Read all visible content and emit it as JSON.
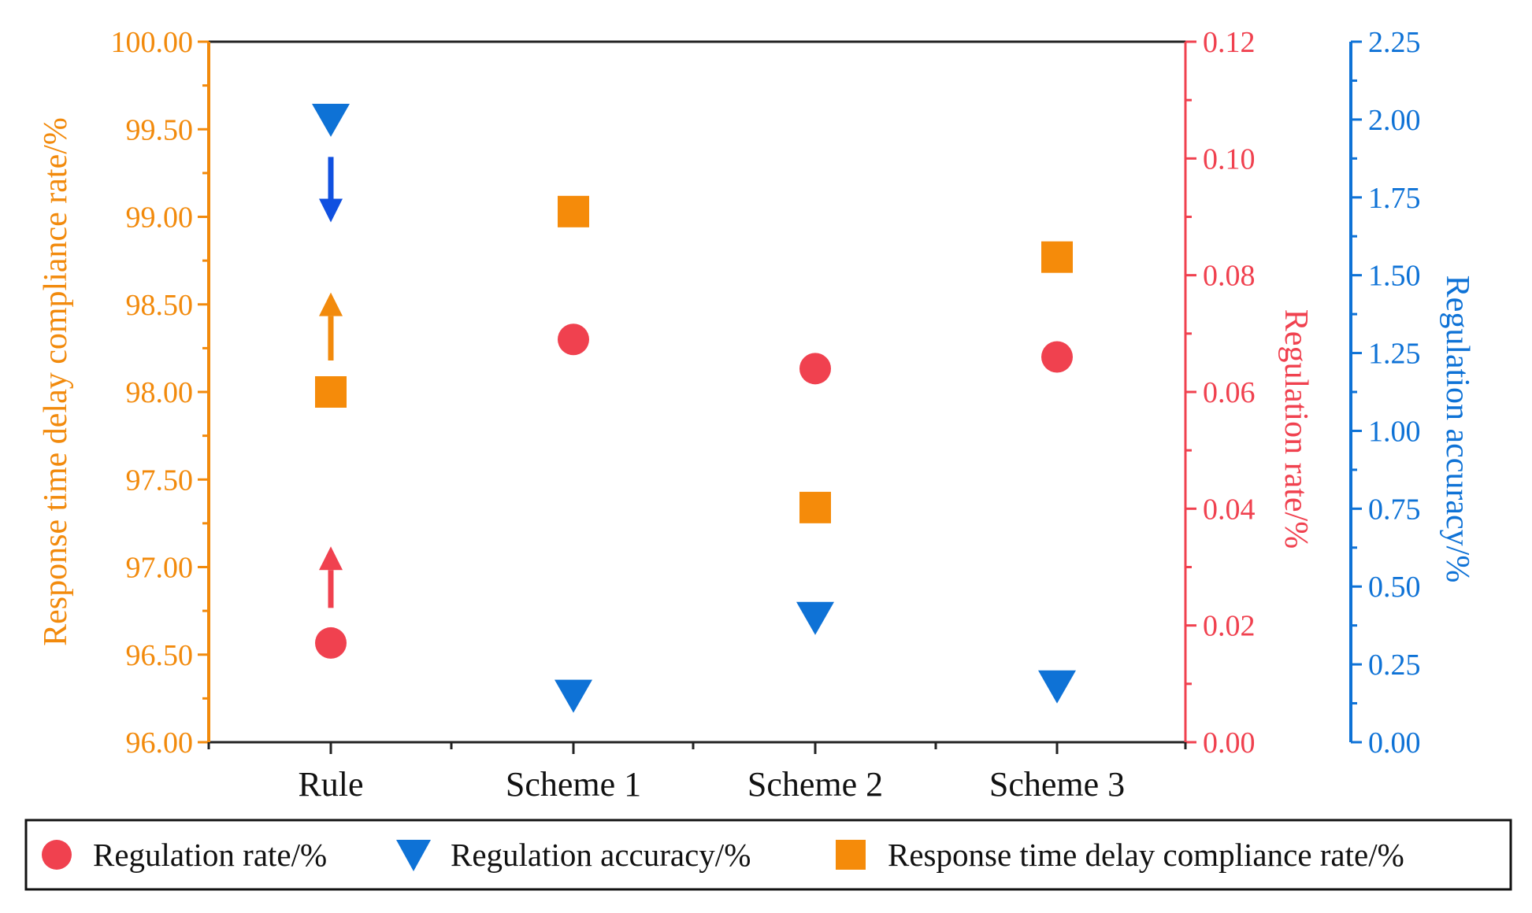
{
  "chart_data": {
    "type": "scatter",
    "categories": [
      "Rule",
      "Scheme 1",
      "Scheme 2",
      "Scheme 3"
    ],
    "axes": {
      "left": {
        "label": "Response time delay compliance rate/%",
        "range": [
          96.0,
          100.0
        ],
        "ticks": [
          "96.00",
          "96.50",
          "97.00",
          "97.50",
          "98.00",
          "98.50",
          "99.00",
          "99.50",
          "100.00"
        ],
        "color": "#f28a0c"
      },
      "right_inner": {
        "label": "Regulation rate/%",
        "range": [
          0.0,
          0.12
        ],
        "ticks": [
          "0.00",
          "0.02",
          "0.04",
          "0.06",
          "0.08",
          "0.10",
          "0.12"
        ],
        "color": "#f0414f"
      },
      "right_outer": {
        "label": "Regulation accuracy/%",
        "range": [
          0.0,
          2.25
        ],
        "ticks": [
          "0.00",
          "0.25",
          "0.50",
          "0.75",
          "1.00",
          "1.25",
          "1.50",
          "1.75",
          "2.00",
          "2.25"
        ],
        "color": "#0e72d6"
      }
    },
    "series": [
      {
        "name": "Regulation rate/%",
        "axis": "right_inner",
        "marker": "circle",
        "color": "#f0414f",
        "values": [
          0.017,
          0.069,
          0.064,
          0.066
        ]
      },
      {
        "name": "Regulation accuracy/%",
        "axis": "right_outer",
        "marker": "triangle-down",
        "color": "#0e72d6",
        "values": [
          2.0,
          0.15,
          0.4,
          0.18
        ]
      },
      {
        "name": "Response time delay compliance rate/%",
        "axis": "left",
        "marker": "square",
        "color": "#f58b0a",
        "values": [
          98.0,
          99.03,
          97.34,
          98.77
        ]
      }
    ],
    "annotations": [
      {
        "category": "Rule",
        "series": "Regulation accuracy/%",
        "direction": "down",
        "from": 1.88,
        "to": 1.68,
        "color": "#1050e0"
      },
      {
        "category": "Rule",
        "series": "Response time delay compliance rate/%",
        "direction": "up",
        "from": 98.18,
        "to": 98.55,
        "color": "#f28a0c"
      },
      {
        "category": "Rule",
        "series": "Regulation rate/%",
        "direction": "up",
        "from": 0.023,
        "to": 0.033,
        "color": "#f0414f"
      }
    ],
    "legend": {
      "position": "bottom",
      "entries": [
        "Regulation rate/%",
        "Regulation accuracy/%",
        "Response time delay compliance rate/%"
      ]
    }
  }
}
